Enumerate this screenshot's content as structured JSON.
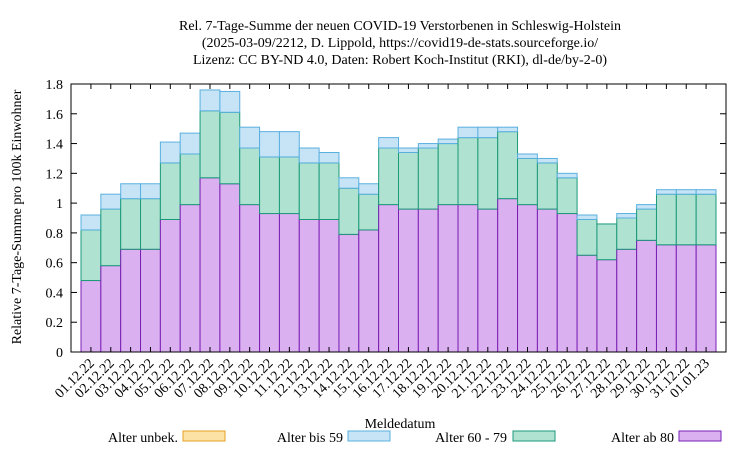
{
  "chart_data": {
    "type": "bar",
    "stacked": true,
    "title_lines": [
      "Rel. 7-Tage-Summe der neuen COVID-19 Verstorbenen in Schleswig-Holstein",
      "(2025-03-09/2212, D. Lippold, https://covid19-de-stats.sourceforge.io/",
      "Lizenz: CC BY-ND 4.0, Daten: Robert Koch-Institut (RKI), dl-de/by-2-0)"
    ],
    "xlabel": "Meldedatum",
    "ylabel": "Relative 7-Tage-Summe pro 100k Einwohner",
    "ylim": [
      0,
      1.8
    ],
    "yticks": [
      "0",
      "0.2",
      "0.4",
      "0.6",
      "0.8",
      "1",
      "1.2",
      "1.4",
      "1.6",
      "1.8"
    ],
    "categories": [
      "01.12.22",
      "02.12.22",
      "03.12.22",
      "04.12.22",
      "05.12.22",
      "06.12.22",
      "07.12.22",
      "08.12.22",
      "09.12.22",
      "10.12.22",
      "11.12.22",
      "12.12.22",
      "13.12.22",
      "14.12.22",
      "15.12.22",
      "16.12.22",
      "17.12.22",
      "18.12.22",
      "19.12.22",
      "20.12.22",
      "21.12.22",
      "22.12.22",
      "23.12.22",
      "24.12.22",
      "25.12.22",
      "26.12.22",
      "27.12.22",
      "28.12.22",
      "29.12.22",
      "30.12.22",
      "31.12.22",
      "01.01.23"
    ],
    "series": [
      {
        "name": "Alter ab 80",
        "color": "#dbb0f0",
        "edge": "#7a1fb4",
        "values": [
          0.48,
          0.58,
          0.69,
          0.69,
          0.89,
          0.99,
          1.17,
          1.13,
          0.99,
          0.93,
          0.93,
          0.89,
          0.89,
          0.79,
          0.82,
          0.99,
          0.96,
          0.96,
          0.99,
          0.99,
          0.96,
          1.03,
          0.99,
          0.96,
          0.93,
          0.65,
          0.62,
          0.69,
          0.75,
          0.72,
          0.72,
          0.72
        ]
      },
      {
        "name": "Alter 60 - 79",
        "color": "#b0e2d2",
        "edge": "#1a9a78",
        "values": [
          0.34,
          0.38,
          0.34,
          0.34,
          0.38,
          0.34,
          0.45,
          0.48,
          0.38,
          0.38,
          0.38,
          0.38,
          0.38,
          0.31,
          0.24,
          0.38,
          0.38,
          0.41,
          0.41,
          0.45,
          0.48,
          0.45,
          0.31,
          0.31,
          0.24,
          0.24,
          0.24,
          0.21,
          0.21,
          0.34,
          0.34,
          0.34
        ]
      },
      {
        "name": "Alter bis 59",
        "color": "#c6e4f6",
        "edge": "#5ab0e0",
        "values": [
          0.1,
          0.1,
          0.1,
          0.1,
          0.14,
          0.14,
          0.14,
          0.14,
          0.14,
          0.17,
          0.17,
          0.1,
          0.07,
          0.07,
          0.07,
          0.07,
          0.03,
          0.03,
          0.03,
          0.07,
          0.07,
          0.03,
          0.03,
          0.03,
          0.03,
          0.03,
          0.0,
          0.03,
          0.03,
          0.03,
          0.03,
          0.03
        ]
      },
      {
        "name": "Alter unbek.",
        "color": "#fde2a6",
        "edge": "#e8a020",
        "values": [
          0,
          0,
          0,
          0,
          0,
          0,
          0,
          0,
          0,
          0,
          0,
          0,
          0,
          0,
          0,
          0,
          0,
          0,
          0,
          0,
          0,
          0,
          0,
          0,
          0,
          0,
          0,
          0,
          0,
          0,
          0,
          0
        ]
      }
    ],
    "legend": {
      "placement": "bottom",
      "order": [
        "Alter unbek.",
        "Alter bis 59",
        "Alter 60 - 79",
        "Alter ab 80"
      ]
    },
    "grid": false
  }
}
